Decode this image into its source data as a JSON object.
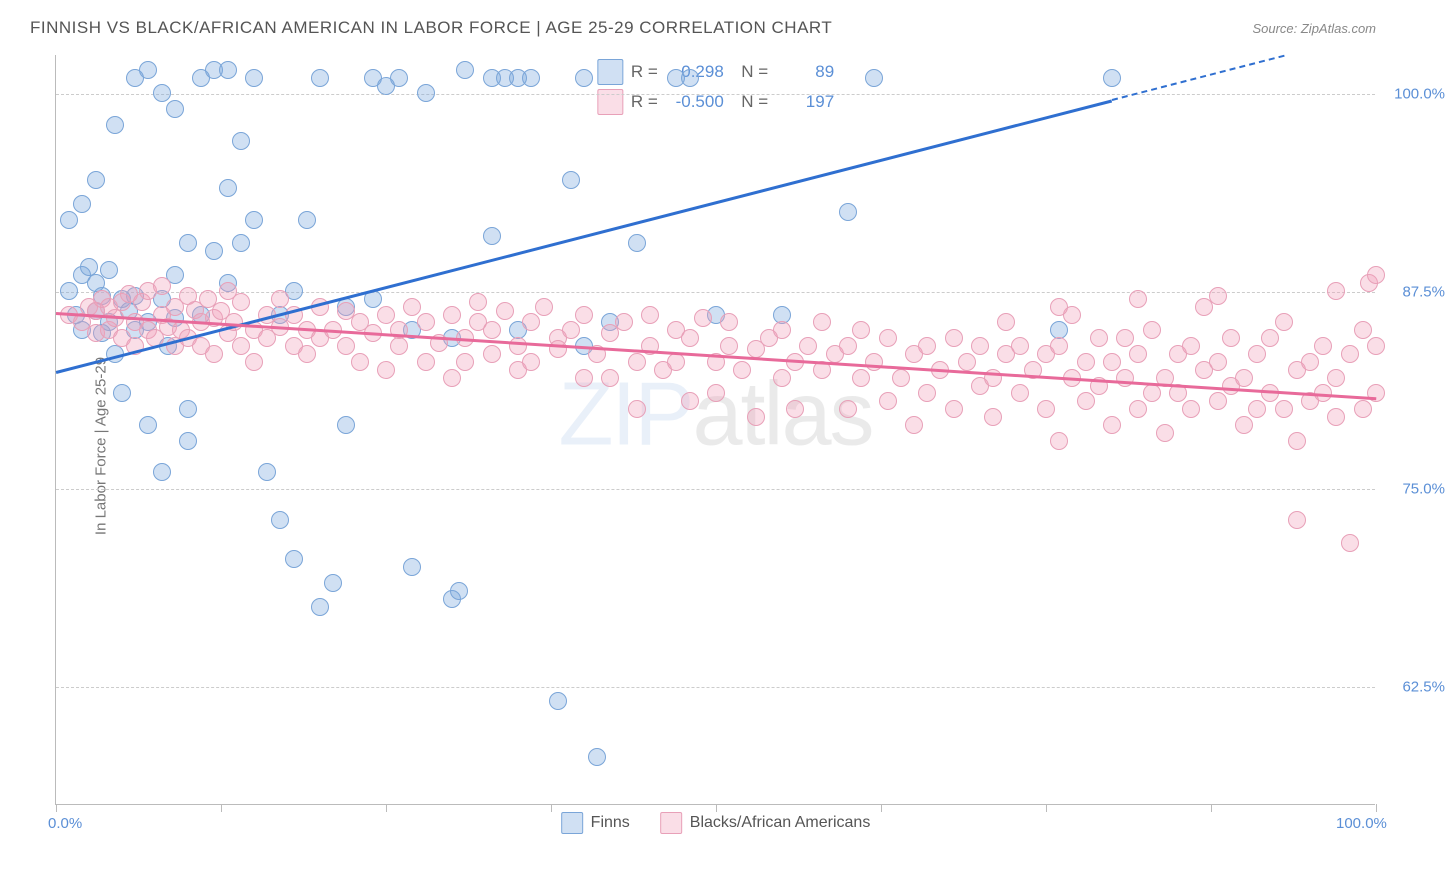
{
  "title": "FINNISH VS BLACK/AFRICAN AMERICAN IN LABOR FORCE | AGE 25-29 CORRELATION CHART",
  "source": "Source: ZipAtlas.com",
  "yaxis_label": "In Labor Force | Age 25-29",
  "watermark_a": "ZIP",
  "watermark_b": "atlas",
  "chart": {
    "xlim": [
      0,
      100
    ],
    "ylim": [
      55,
      102.5
    ],
    "xticks": [
      0,
      12.5,
      25,
      37.5,
      50,
      62.5,
      75,
      87.5,
      100
    ],
    "xtick_labels_shown": {
      "0": "0.0%",
      "100": "100.0%"
    },
    "yticks": [
      62.5,
      75.0,
      87.5,
      100.0
    ],
    "ytick_labels": [
      "62.5%",
      "75.0%",
      "87.5%",
      "100.0%"
    ],
    "grid_color": "#cccccc",
    "background": "#ffffff",
    "point_radius": 9,
    "series": [
      {
        "name": "Finns",
        "fill": "rgba(120,165,220,0.35)",
        "stroke": "#7aa5d8",
        "r_value": "0.298",
        "n_value": "89",
        "trend": {
          "x1": 0,
          "y1": 82.5,
          "x2": 100,
          "y2": 104,
          "color": "#2f6fd0",
          "dash_after_x": 80
        },
        "points": [
          [
            1,
            87.5
          ],
          [
            1.5,
            86
          ],
          [
            2,
            88.5
          ],
          [
            2,
            85
          ],
          [
            2.5,
            89
          ],
          [
            3,
            86.2
          ],
          [
            3,
            88
          ],
          [
            3.5,
            84.8
          ],
          [
            3.5,
            87.2
          ],
          [
            4,
            85.5
          ],
          [
            4,
            88.8
          ],
          [
            4.5,
            83.5
          ],
          [
            5,
            87
          ],
          [
            5.5,
            86.2
          ],
          [
            5,
            81
          ],
          [
            6,
            85
          ],
          [
            6,
            87.2
          ],
          [
            7,
            79
          ],
          [
            7,
            85.5
          ],
          [
            8,
            76
          ],
          [
            8,
            87
          ],
          [
            8.5,
            84
          ],
          [
            9,
            88.5
          ],
          [
            9,
            85.8
          ],
          [
            10,
            78
          ],
          [
            10,
            80
          ],
          [
            10,
            90.5
          ],
          [
            11,
            86
          ],
          [
            1,
            92
          ],
          [
            2,
            93
          ],
          [
            3,
            94.5
          ],
          [
            4.5,
            98
          ],
          [
            6,
            101
          ],
          [
            7,
            101.5
          ],
          [
            8,
            100
          ],
          [
            9,
            99
          ],
          [
            11,
            101
          ],
          [
            12,
            90
          ],
          [
            12,
            101.5
          ],
          [
            13,
            88
          ],
          [
            13,
            94
          ],
          [
            13,
            101.5
          ],
          [
            14,
            90.5
          ],
          [
            14,
            97
          ],
          [
            15,
            92
          ],
          [
            15,
            101
          ],
          [
            16,
            76
          ],
          [
            17,
            73
          ],
          [
            17,
            86
          ],
          [
            18,
            70.5
          ],
          [
            18,
            87.5
          ],
          [
            19,
            92
          ],
          [
            20,
            67.5
          ],
          [
            20,
            101
          ],
          [
            21,
            69
          ],
          [
            22,
            79
          ],
          [
            22,
            86.5
          ],
          [
            24,
            87
          ],
          [
            24,
            101
          ],
          [
            25,
            100.5
          ],
          [
            26,
            101
          ],
          [
            27,
            70
          ],
          [
            27,
            85
          ],
          [
            28,
            100
          ],
          [
            30,
            68
          ],
          [
            30,
            84.5
          ],
          [
            30.5,
            68.5
          ],
          [
            31,
            101.5
          ],
          [
            33,
            91
          ],
          [
            33,
            101
          ],
          [
            34,
            101
          ],
          [
            35,
            101
          ],
          [
            35,
            85
          ],
          [
            36,
            101
          ],
          [
            38,
            61.5
          ],
          [
            39,
            94.5
          ],
          [
            40,
            84
          ],
          [
            40,
            101
          ],
          [
            41,
            58
          ],
          [
            42,
            85.5
          ],
          [
            44,
            90.5
          ],
          [
            47,
            101
          ],
          [
            48,
            101
          ],
          [
            50,
            86
          ],
          [
            55,
            86
          ],
          [
            60,
            92.5
          ],
          [
            62,
            101
          ],
          [
            76,
            85
          ],
          [
            80,
            101
          ]
        ]
      },
      {
        "name": "Blacks/African Americans",
        "fill": "rgba(240,160,185,0.35)",
        "stroke": "#e8a0b8",
        "r_value": "-0.500",
        "n_value": "197",
        "trend": {
          "x1": 0,
          "y1": 86.2,
          "x2": 100,
          "y2": 80.8,
          "color": "#e86a9a"
        },
        "points": [
          [
            1,
            86
          ],
          [
            2,
            85.5
          ],
          [
            2.5,
            86.5
          ],
          [
            3,
            84.8
          ],
          [
            3,
            86.2
          ],
          [
            3.5,
            87
          ],
          [
            4,
            85
          ],
          [
            4,
            86.5
          ],
          [
            4.5,
            85.8
          ],
          [
            5,
            84.5
          ],
          [
            5,
            86.8
          ],
          [
            5.5,
            87.3
          ],
          [
            6,
            84
          ],
          [
            6,
            85.5
          ],
          [
            6.5,
            86.8
          ],
          [
            7,
            85
          ],
          [
            7,
            87.5
          ],
          [
            7.5,
            84.5
          ],
          [
            8,
            86
          ],
          [
            8,
            87.8
          ],
          [
            8.5,
            85.2
          ],
          [
            9,
            84
          ],
          [
            9,
            86.5
          ],
          [
            9.5,
            85
          ],
          [
            10,
            87.2
          ],
          [
            10,
            84.5
          ],
          [
            10.5,
            86.3
          ],
          [
            11,
            85.5
          ],
          [
            11,
            84
          ],
          [
            11.5,
            87
          ],
          [
            12,
            85.8
          ],
          [
            12,
            83.5
          ],
          [
            12.5,
            86.2
          ],
          [
            13,
            84.8
          ],
          [
            13,
            87.5
          ],
          [
            13.5,
            85.5
          ],
          [
            14,
            84
          ],
          [
            14,
            86.8
          ],
          [
            15,
            85
          ],
          [
            15,
            83
          ],
          [
            16,
            86
          ],
          [
            16,
            84.5
          ],
          [
            17,
            85.2
          ],
          [
            17,
            87
          ],
          [
            18,
            84
          ],
          [
            18,
            86
          ],
          [
            19,
            85
          ],
          [
            19,
            83.5
          ],
          [
            20,
            86.5
          ],
          [
            20,
            84.5
          ],
          [
            21,
            85
          ],
          [
            22,
            84
          ],
          [
            22,
            86.2
          ],
          [
            23,
            83
          ],
          [
            23,
            85.5
          ],
          [
            24,
            84.8
          ],
          [
            25,
            86
          ],
          [
            25,
            82.5
          ],
          [
            26,
            85
          ],
          [
            26,
            84
          ],
          [
            27,
            86.5
          ],
          [
            28,
            83
          ],
          [
            28,
            85.5
          ],
          [
            29,
            84.2
          ],
          [
            30,
            86
          ],
          [
            30,
            82
          ],
          [
            31,
            84.5
          ],
          [
            31,
            83
          ],
          [
            32,
            85.5
          ],
          [
            32,
            86.8
          ],
          [
            33,
            83.5
          ],
          [
            33,
            85
          ],
          [
            34,
            86.2
          ],
          [
            35,
            84
          ],
          [
            35,
            82.5
          ],
          [
            36,
            85.5
          ],
          [
            36,
            83
          ],
          [
            37,
            86.5
          ],
          [
            38,
            84.5
          ],
          [
            38,
            83.8
          ],
          [
            39,
            85
          ],
          [
            40,
            82
          ],
          [
            40,
            86
          ],
          [
            41,
            83.5
          ],
          [
            42,
            84.8
          ],
          [
            42,
            82
          ],
          [
            43,
            85.5
          ],
          [
            44,
            83
          ],
          [
            44,
            80
          ],
          [
            45,
            84
          ],
          [
            45,
            86
          ],
          [
            46,
            82.5
          ],
          [
            47,
            85
          ],
          [
            47,
            83
          ],
          [
            48,
            84.5
          ],
          [
            48,
            80.5
          ],
          [
            49,
            85.8
          ],
          [
            50,
            83
          ],
          [
            50,
            81
          ],
          [
            51,
            84
          ],
          [
            51,
            85.5
          ],
          [
            52,
            82.5
          ],
          [
            53,
            83.8
          ],
          [
            53,
            79.5
          ],
          [
            54,
            84.5
          ],
          [
            55,
            82
          ],
          [
            55,
            85
          ],
          [
            56,
            83
          ],
          [
            56,
            80
          ],
          [
            57,
            84
          ],
          [
            58,
            82.5
          ],
          [
            58,
            85.5
          ],
          [
            59,
            83.5
          ],
          [
            60,
            80
          ],
          [
            60,
            84
          ],
          [
            61,
            82
          ],
          [
            61,
            85
          ],
          [
            62,
            83
          ],
          [
            63,
            80.5
          ],
          [
            63,
            84.5
          ],
          [
            64,
            82
          ],
          [
            65,
            83.5
          ],
          [
            65,
            79
          ],
          [
            66,
            84
          ],
          [
            66,
            81
          ],
          [
            67,
            82.5
          ],
          [
            68,
            84.5
          ],
          [
            68,
            80
          ],
          [
            69,
            83
          ],
          [
            70,
            81.5
          ],
          [
            70,
            84
          ],
          [
            71,
            82
          ],
          [
            71,
            79.5
          ],
          [
            72,
            83.5
          ],
          [
            72,
            85.5
          ],
          [
            73,
            81
          ],
          [
            73,
            84
          ],
          [
            74,
            82.5
          ],
          [
            75,
            80
          ],
          [
            75,
            83.5
          ],
          [
            76,
            78
          ],
          [
            76,
            84
          ],
          [
            77,
            82
          ],
          [
            77,
            86
          ],
          [
            78,
            83
          ],
          [
            78,
            80.5
          ],
          [
            79,
            84.5
          ],
          [
            79,
            81.5
          ],
          [
            80,
            83
          ],
          [
            80,
            79
          ],
          [
            81,
            82
          ],
          [
            81,
            84.5
          ],
          [
            82,
            80
          ],
          [
            82,
            83.5
          ],
          [
            83,
            81
          ],
          [
            83,
            85
          ],
          [
            84,
            82
          ],
          [
            84,
            78.5
          ],
          [
            85,
            83.5
          ],
          [
            85,
            81
          ],
          [
            86,
            80
          ],
          [
            86,
            84
          ],
          [
            87,
            82.5
          ],
          [
            87,
            86.5
          ],
          [
            88,
            83
          ],
          [
            88,
            80.5
          ],
          [
            89,
            81.5
          ],
          [
            89,
            84.5
          ],
          [
            90,
            82
          ],
          [
            90,
            79
          ],
          [
            91,
            83.5
          ],
          [
            91,
            80
          ],
          [
            92,
            84.5
          ],
          [
            92,
            81
          ],
          [
            93,
            80
          ],
          [
            93,
            85.5
          ],
          [
            94,
            82.5
          ],
          [
            94,
            78
          ],
          [
            95,
            83
          ],
          [
            95,
            80.5
          ],
          [
            96,
            81
          ],
          [
            96,
            84
          ],
          [
            97,
            79.5
          ],
          [
            97,
            82
          ],
          [
            98,
            83.5
          ],
          [
            98,
            71.5
          ],
          [
            99,
            80
          ],
          [
            99,
            85
          ],
          [
            99.5,
            88
          ],
          [
            94,
            73
          ],
          [
            88,
            87.2
          ],
          [
            82,
            87
          ],
          [
            76,
            86.5
          ],
          [
            100,
            81
          ],
          [
            100,
            84
          ],
          [
            100,
            88.5
          ],
          [
            97,
            87.5
          ]
        ]
      }
    ]
  },
  "legend_labels": {
    "r": "R =",
    "n": "N ="
  },
  "bottom_legend": [
    "Finns",
    "Blacks/African Americans"
  ]
}
